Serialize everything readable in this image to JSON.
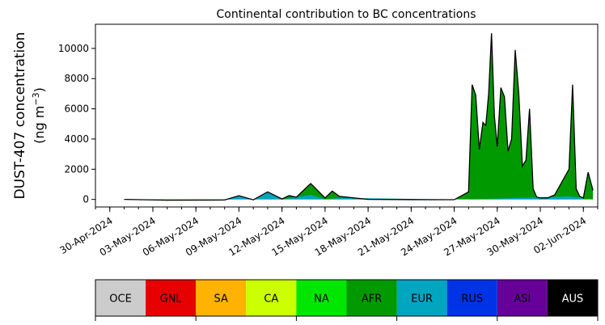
{
  "chart_data": {
    "type": "area",
    "title": "Continental contribution to BC concentrations",
    "ylabel_line1": "DUST-407 concentration",
    "ylabel_line2": "(ng m",
    "ylabel_unit_exp": "−3",
    "ylabel_close": ")",
    "xlabel": "",
    "ylim": [
      -500,
      11600
    ],
    "yticks": [
      0,
      2000,
      4000,
      6000,
      8000,
      10000
    ],
    "x_start": "2024-04-29",
    "x_end": "2024-06-03",
    "xtick_labels": [
      "30-Apr-2024",
      "03-May-2024",
      "06-May-2024",
      "09-May-2024",
      "12-May-2024",
      "15-May-2024",
      "18-May-2024",
      "21-May-2024",
      "24-May-2024",
      "27-May-2024",
      "30-May-2024",
      "02-Jun-2024"
    ],
    "xtick_dates": [
      "2024-04-30",
      "2024-05-03",
      "2024-05-06",
      "2024-05-09",
      "2024-05-12",
      "2024-05-15",
      "2024-05-18",
      "2024-05-21",
      "2024-05-24",
      "2024-05-27",
      "2024-05-30",
      "2024-06-02"
    ],
    "grid": false,
    "series_colors": {
      "dominant": "#009900",
      "minor": "#00a5c0",
      "outline": "#000000"
    },
    "total_series": {
      "dates": [
        "2024-05-01",
        "2024-05-04",
        "2024-05-08",
        "2024-05-09",
        "2024-05-10",
        "2024-05-11",
        "2024-05-12",
        "2024-05-12",
        "2024-05-13",
        "2024-05-14",
        "2024-05-15",
        "2024-05-15",
        "2024-05-16",
        "2024-05-18",
        "2024-05-22",
        "2024-05-24",
        "2024-05-25",
        "2024-05-25",
        "2024-05-25",
        "2024-05-25",
        "2024-05-26",
        "2024-05-26",
        "2024-05-26",
        "2024-05-26",
        "2024-05-26",
        "2024-05-27",
        "2024-05-27",
        "2024-05-27",
        "2024-05-27",
        "2024-05-28",
        "2024-05-28",
        "2024-05-28",
        "2024-05-28",
        "2024-05-29",
        "2024-05-29",
        "2024-05-29",
        "2024-05-29",
        "2024-05-30",
        "2024-05-30",
        "2024-05-31",
        "2024-06-01",
        "2024-06-01",
        "2024-06-01",
        "2024-06-01",
        "2024-06-02",
        "2024-06-02",
        "2024-06-02"
      ],
      "values": [
        0,
        -50,
        -40,
        250,
        -30,
        500,
        30,
        250,
        150,
        1050,
        100,
        550,
        200,
        0,
        -20,
        -20,
        500,
        7600,
        6900,
        3300,
        5100,
        4900,
        7000,
        11000,
        5500,
        3500,
        7400,
        6800,
        3200,
        4000,
        9900,
        7000,
        2200,
        2600,
        6000,
        700,
        150,
        100,
        100,
        300,
        2000,
        7600,
        700,
        200,
        100,
        1800,
        600
      ]
    },
    "minor_series": {
      "dates": [
        "2024-05-01",
        "2024-05-08",
        "2024-05-09",
        "2024-05-10",
        "2024-05-11",
        "2024-05-12",
        "2024-05-14",
        "2024-05-15",
        "2024-05-16",
        "2024-05-24",
        "2024-05-25",
        "2024-06-01",
        "2024-06-02"
      ],
      "values": [
        0,
        0,
        250,
        0,
        450,
        0,
        300,
        0,
        100,
        0,
        0,
        200,
        100
      ]
    },
    "legend_bar": {
      "labels": [
        "OCE",
        "GNL",
        "SA",
        "CA",
        "NA",
        "AFR",
        "EUR",
        "RUS",
        "ASI",
        "AUS"
      ],
      "colors": [
        "#cccccc",
        "#e60000",
        "#ffb300",
        "#ccff00",
        "#00e600",
        "#009900",
        "#00a5c0",
        "#0033e6",
        "#660099",
        "#000000"
      ],
      "text_colors": [
        "#000000",
        "#000000",
        "#000000",
        "#000000",
        "#000000",
        "#000000",
        "#000000",
        "#000000",
        "#000000",
        "#ffffff"
      ]
    }
  }
}
